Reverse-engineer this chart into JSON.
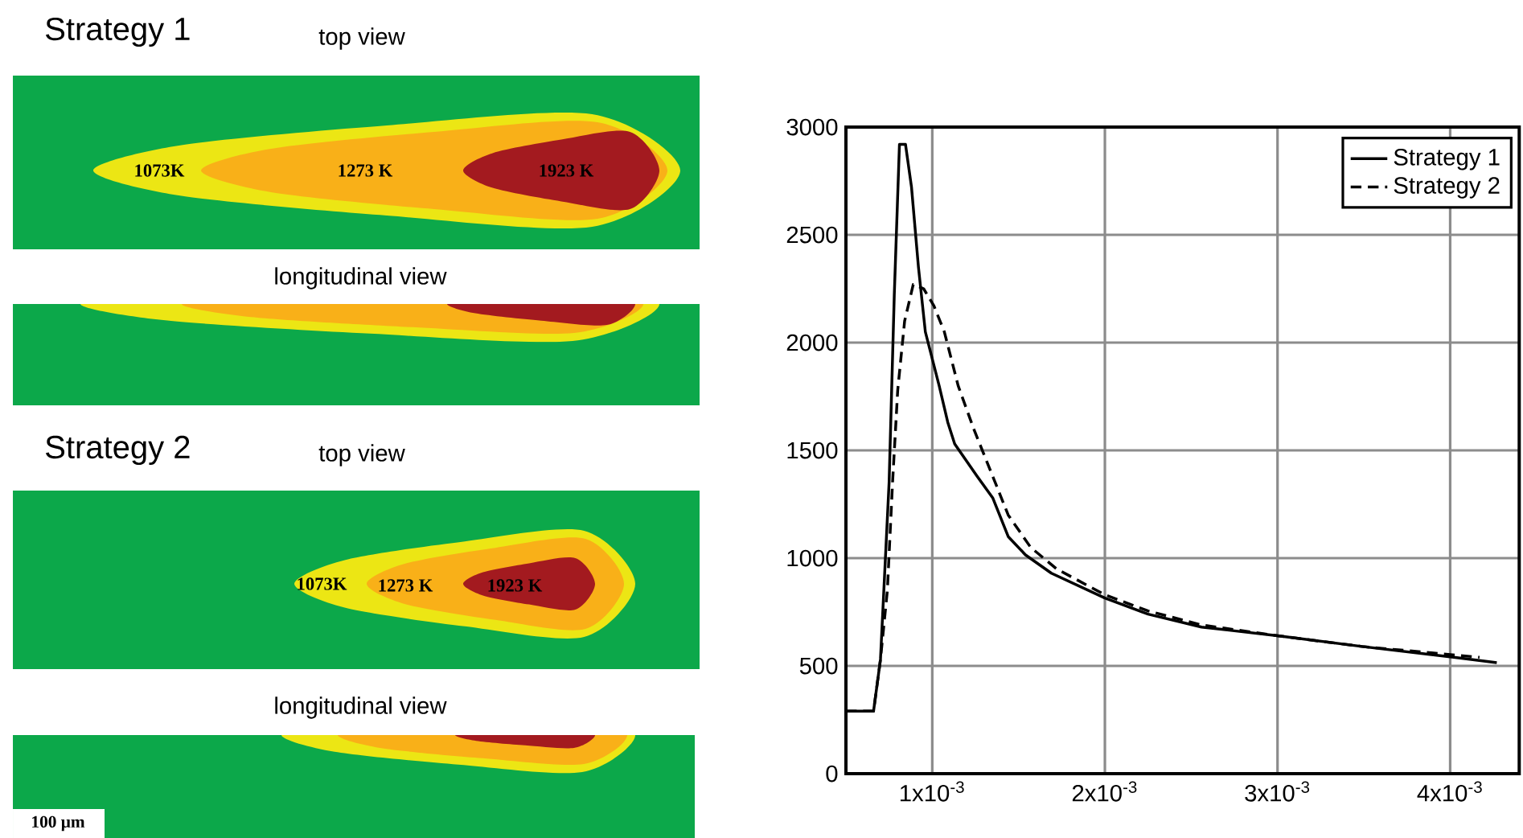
{
  "chart_data": [
    {
      "type": "other",
      "annotations": [
        "Strategy 1",
        "top view",
        "1073K",
        "1273 K",
        "1923 K",
        "longitudinal view",
        "Strategy 2",
        "top view",
        "1073K",
        "1273 K",
        "1923 K",
        "longitudinal view",
        "100 μm"
      ]
    },
    {
      "type": "line",
      "xlim": [
        0.0005,
        0.0044
      ],
      "ylim": [
        0,
        3000
      ],
      "xticks": [
        {
          "value": 0.001,
          "label": "1x10$^{-3}$"
        },
        {
          "value": 0.002,
          "label": "2x10$^{-3}$"
        },
        {
          "value": 0.003,
          "label": "3x10$^{-3}$"
        },
        {
          "value": 0.004,
          "label": "4x10$^{-3}$"
        }
      ],
      "yticks": [
        0,
        500,
        1000,
        1500,
        2000,
        2500,
        3000
      ],
      "grid": true,
      "legend": "top right",
      "series": [
        {
          "name": "Strategy 1",
          "color": "#000000",
          "line_style": "solid",
          "x": [
            0.0005,
            0.00066,
            0.0007,
            0.00075,
            0.00078,
            0.00081,
            0.000845,
            0.00088,
            0.00092,
            0.00096,
            0.00104,
            0.00109,
            0.00113,
            0.00126,
            0.00135,
            0.00144,
            0.00154,
            0.00169,
            0.002,
            0.00225,
            0.00256,
            0.003,
            0.00349,
            0.00402,
            0.00427
          ],
          "values": [
            290,
            290,
            530,
            1350,
            2220,
            2920,
            2920,
            2720,
            2350,
            2050,
            1800,
            1630,
            1530,
            1380,
            1280,
            1100,
            1015,
            930,
            815,
            740,
            680,
            640,
            590,
            540,
            515
          ]
        },
        {
          "name": "Strategy 2",
          "color": "#000000",
          "line_style": "dashed",
          "x": [
            0.0005,
            0.00066,
            0.0007,
            0.00074,
            0.00077,
            0.0008,
            0.00084,
            0.00089,
            0.00095,
            0.00101,
            0.00107,
            0.00115,
            0.00124,
            0.00134,
            0.00144,
            0.00157,
            0.00172,
            0.002,
            0.00225,
            0.00256,
            0.003,
            0.00349,
            0.00417
          ],
          "values": [
            290,
            290,
            530,
            850,
            1350,
            1780,
            2100,
            2270,
            2250,
            2170,
            2050,
            1800,
            1600,
            1400,
            1200,
            1050,
            950,
            830,
            755,
            690,
            640,
            590,
            540
          ]
        }
      ]
    }
  ]
}
